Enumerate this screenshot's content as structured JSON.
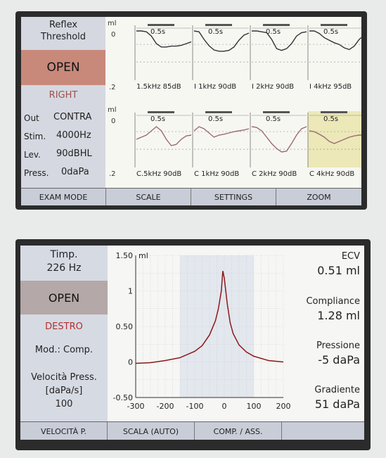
{
  "screen1": {
    "title_line1": "Reflex",
    "title_line2": "Threshold",
    "status": "OPEN",
    "ear": "RIGHT",
    "out_label": "Out",
    "out_value": "CONTRA",
    "stim_label": "Stim.",
    "stim_value": "4000Hz",
    "lev_label": "Lev.",
    "lev_value": "90dBHL",
    "press_label": "Press.",
    "press_value": "0daPa",
    "unit": "ml",
    "y_top": "0",
    "y_bottom": ".2",
    "time_label": "0.5s",
    "top_row": [
      {
        "freq": "1.5kHz",
        "level": "85dB"
      },
      {
        "freq": "I 1kHz",
        "level": "90dB"
      },
      {
        "freq": "I 2kHz",
        "level": "90dB"
      },
      {
        "freq": "I 4kHz",
        "level": "95dB"
      }
    ],
    "bottom_row": [
      {
        "freq": "C.5kHz",
        "level": "90dB"
      },
      {
        "freq": "C 1kHz",
        "level": "90dB"
      },
      {
        "freq": "C 2kHz",
        "level": "90dB"
      },
      {
        "freq": "C 4kHz",
        "level": "90dB"
      }
    ],
    "buttons": [
      "EXAM MODE",
      "SCALE",
      "SETTINGS",
      "ZOOM"
    ]
  },
  "screen2": {
    "timp_label": "Timp.",
    "timp_value": "226 Hz",
    "status": "OPEN",
    "ear": "DESTRO",
    "mode": "Mod.: Comp.",
    "speed_label_1": "Velocità Press.",
    "speed_label_2": "[daPa/s]",
    "speed_value": "100",
    "ecv_label": "ECV",
    "ecv_value": "0.51 ml",
    "compliance_label": "Compliance",
    "compliance_value": "1.28 ml",
    "pressure_label": "Pressione",
    "pressure_value": "-5 daPa",
    "gradient_label": "Gradiente",
    "gradient_value": "51 daPa",
    "buttons": [
      "VELOCITÀ P.",
      "SCALA (AUTO)",
      "COMP. / ASS."
    ]
  },
  "chart_data": {
    "type": "line",
    "title": "",
    "xlabel": "",
    "ylabel": "ml",
    "xlim": [
      -300,
      200
    ],
    "ylim": [
      -0.5,
      1.5
    ],
    "x_ticks": [
      "-300",
      "-200",
      "-100",
      "0",
      "100",
      "200"
    ],
    "y_ticks": [
      "1.50",
      "1",
      "0.50",
      "0",
      "-0.50"
    ],
    "grid": true,
    "series": [
      {
        "color": "#8a1a1a",
        "x": [
          -300,
          -250,
          -200,
          -150,
          -100,
          -75,
          -50,
          -30,
          -20,
          -10,
          -5,
          0,
          10,
          20,
          30,
          50,
          75,
          100,
          150,
          200
        ],
        "y": [
          -0.02,
          -0.01,
          0.02,
          0.06,
          0.15,
          0.23,
          0.38,
          0.58,
          0.75,
          1.0,
          1.28,
          1.18,
          0.82,
          0.55,
          0.4,
          0.24,
          0.14,
          0.08,
          0.02,
          0.0
        ]
      }
    ]
  }
}
